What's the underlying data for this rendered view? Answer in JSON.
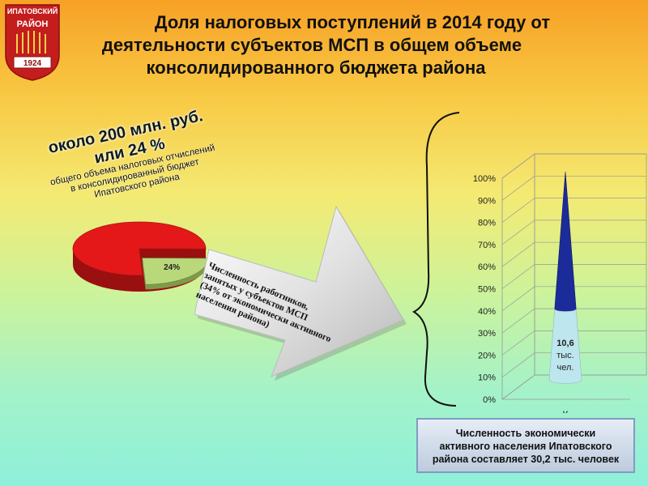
{
  "logo": {
    "top_text": "ИПАТОВСКИЙ",
    "mid_text": "РАЙОН",
    "year": "1924"
  },
  "title": {
    "line1": "Доля налоговых поступлений в 2014 году от",
    "line2": "деятельности субъектов МСП в общем объеме",
    "line3": "консолидированного бюджета района"
  },
  "summary": {
    "amount_line1": "около 200 млн. руб.",
    "amount_line2": "или 24 %",
    "desc_line1": "общего объема налоговых отчислений",
    "desc_line2": "в консолидированный бюджет",
    "desc_line3": "Ипатовского района"
  },
  "arrow_text": {
    "line1": "Численность работников,",
    "line2": "занятых у субъектов МСП",
    "line3": "(34% от экономически активного",
    "line4": "населения района)"
  },
  "info_box": {
    "line1": "Численность  экономически",
    "line2": "активного населения Ипатовского",
    "line3": "района составляет 30,2 тыс. человек"
  },
  "colors": {
    "pie_main": "#e41818",
    "pie_slice": "#b8d87a",
    "cone_top": "#1c2b9a",
    "cone_bottom": "#bde6ee"
  },
  "chart_data": [
    {
      "type": "pie",
      "slices": [
        {
          "label": "",
          "value": 76
        },
        {
          "label": "24%",
          "value": 24
        }
      ]
    },
    {
      "type": "bar",
      "categories": [
        "К"
      ],
      "ylim": [
        0,
        100
      ],
      "yticks": [
        "0%",
        "10%",
        "20%",
        "30%",
        "40%",
        "50%",
        "60%",
        "70%",
        "80%",
        "90%",
        "100%"
      ],
      "series": [
        {
          "name": "",
          "values": [
            34
          ],
          "label_line1": "10,6",
          "label_line2": "тыс.",
          "label_line3": "чел."
        },
        {
          "name": "",
          "values": [
            66
          ]
        }
      ]
    }
  ]
}
